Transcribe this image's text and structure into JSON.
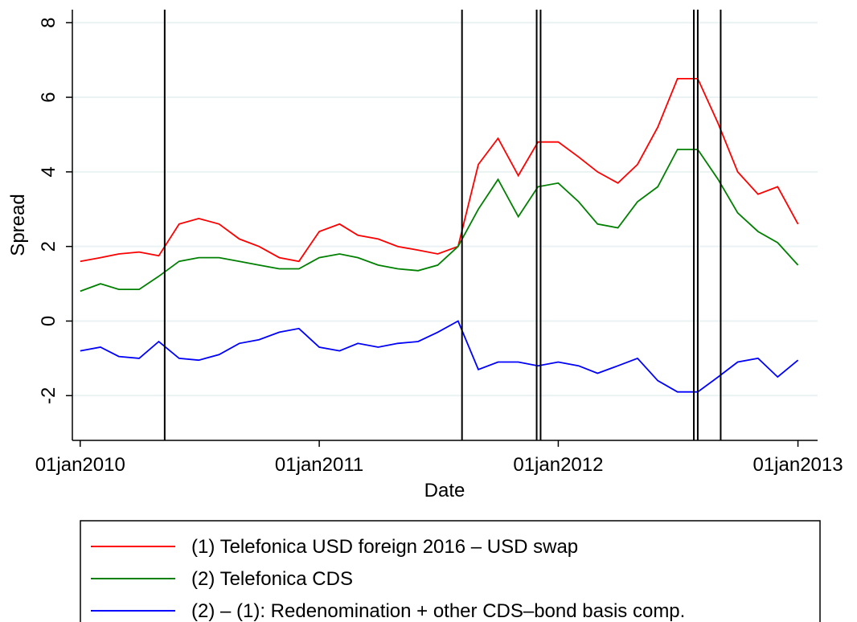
{
  "chart_data": {
    "type": "line",
    "x_label": "Date",
    "y_label": "Spread",
    "x": [
      "2010-01-01",
      "2010-02-01",
      "2010-03-01",
      "2010-04-01",
      "2010-05-01",
      "2010-06-01",
      "2010-07-01",
      "2010-08-01",
      "2010-09-01",
      "2010-10-01",
      "2010-11-01",
      "2010-12-01",
      "2011-01-01",
      "2011-02-01",
      "2011-03-01",
      "2011-04-01",
      "2011-05-01",
      "2011-06-01",
      "2011-07-01",
      "2011-08-01",
      "2011-09-01",
      "2011-10-01",
      "2011-11-01",
      "2011-12-01",
      "2012-01-01",
      "2012-02-01",
      "2012-03-01",
      "2012-04-01",
      "2012-05-01",
      "2012-06-01",
      "2012-07-01",
      "2012-08-01",
      "2012-09-01",
      "2012-10-01",
      "2012-11-01",
      "2012-12-01",
      "2013-01-01"
    ],
    "series": [
      {
        "name": "(1) Telefonica USD foreign 2016 – USD swap",
        "color": "#ff0000",
        "values": [
          1.6,
          1.7,
          1.8,
          1.85,
          1.75,
          2.6,
          2.75,
          2.6,
          2.2,
          2.0,
          1.7,
          1.6,
          2.4,
          2.6,
          2.3,
          2.2,
          2.0,
          1.9,
          1.8,
          2.0,
          4.2,
          4.9,
          3.9,
          4.8,
          4.8,
          4.4,
          4.0,
          3.7,
          4.2,
          5.2,
          6.5,
          6.5,
          5.3,
          4.0,
          3.4,
          3.6,
          2.6
        ]
      },
      {
        "name": "(2) Telefonica CDS",
        "color": "#008000",
        "values": [
          0.8,
          1.0,
          0.85,
          0.85,
          1.2,
          1.6,
          1.7,
          1.7,
          1.6,
          1.5,
          1.4,
          1.4,
          1.7,
          1.8,
          1.7,
          1.5,
          1.4,
          1.35,
          1.5,
          2.0,
          3.0,
          3.8,
          2.8,
          3.6,
          3.7,
          3.2,
          2.6,
          2.5,
          3.2,
          3.6,
          4.6,
          4.6,
          3.8,
          2.9,
          2.4,
          2.1,
          1.5
        ]
      },
      {
        "name": "(2) – (1): Redenomination + other CDS–bond basis comp.",
        "color": "#0000ff",
        "values": [
          -0.8,
          -0.7,
          -0.95,
          -1.0,
          -0.55,
          -1.0,
          -1.05,
          -0.9,
          -0.6,
          -0.5,
          -0.3,
          -0.2,
          -0.7,
          -0.8,
          -0.6,
          -0.7,
          -0.6,
          -0.55,
          -0.3,
          0,
          -1.3,
          -1.1,
          -1.1,
          -1.2,
          -1.1,
          -1.2,
          -1.4,
          -1.2,
          -1.0,
          -1.6,
          -1.9,
          -1.9,
          -1.5,
          -1.1,
          -1.0,
          -1.5,
          -1.05
        ]
      }
    ],
    "vlines": [
      "2010-05-10",
      "2011-08-07",
      "2011-11-29",
      "2011-12-05",
      "2012-07-26",
      "2012-08-01",
      "2012-09-05"
    ],
    "xlim": [
      "2009-12-20",
      "2013-01-31"
    ],
    "xticks": [
      {
        "value": "2010-01-01",
        "label": "01jan2010"
      },
      {
        "value": "2011-01-01",
        "label": "01jan2011"
      },
      {
        "value": "2012-01-01",
        "label": "01jan2012"
      },
      {
        "value": "2013-01-01",
        "label": "01jan2013"
      }
    ],
    "ylim": [
      -3.2,
      8.35
    ],
    "yticks": [
      -2,
      0,
      2,
      4,
      6,
      8
    ],
    "grid": true
  }
}
